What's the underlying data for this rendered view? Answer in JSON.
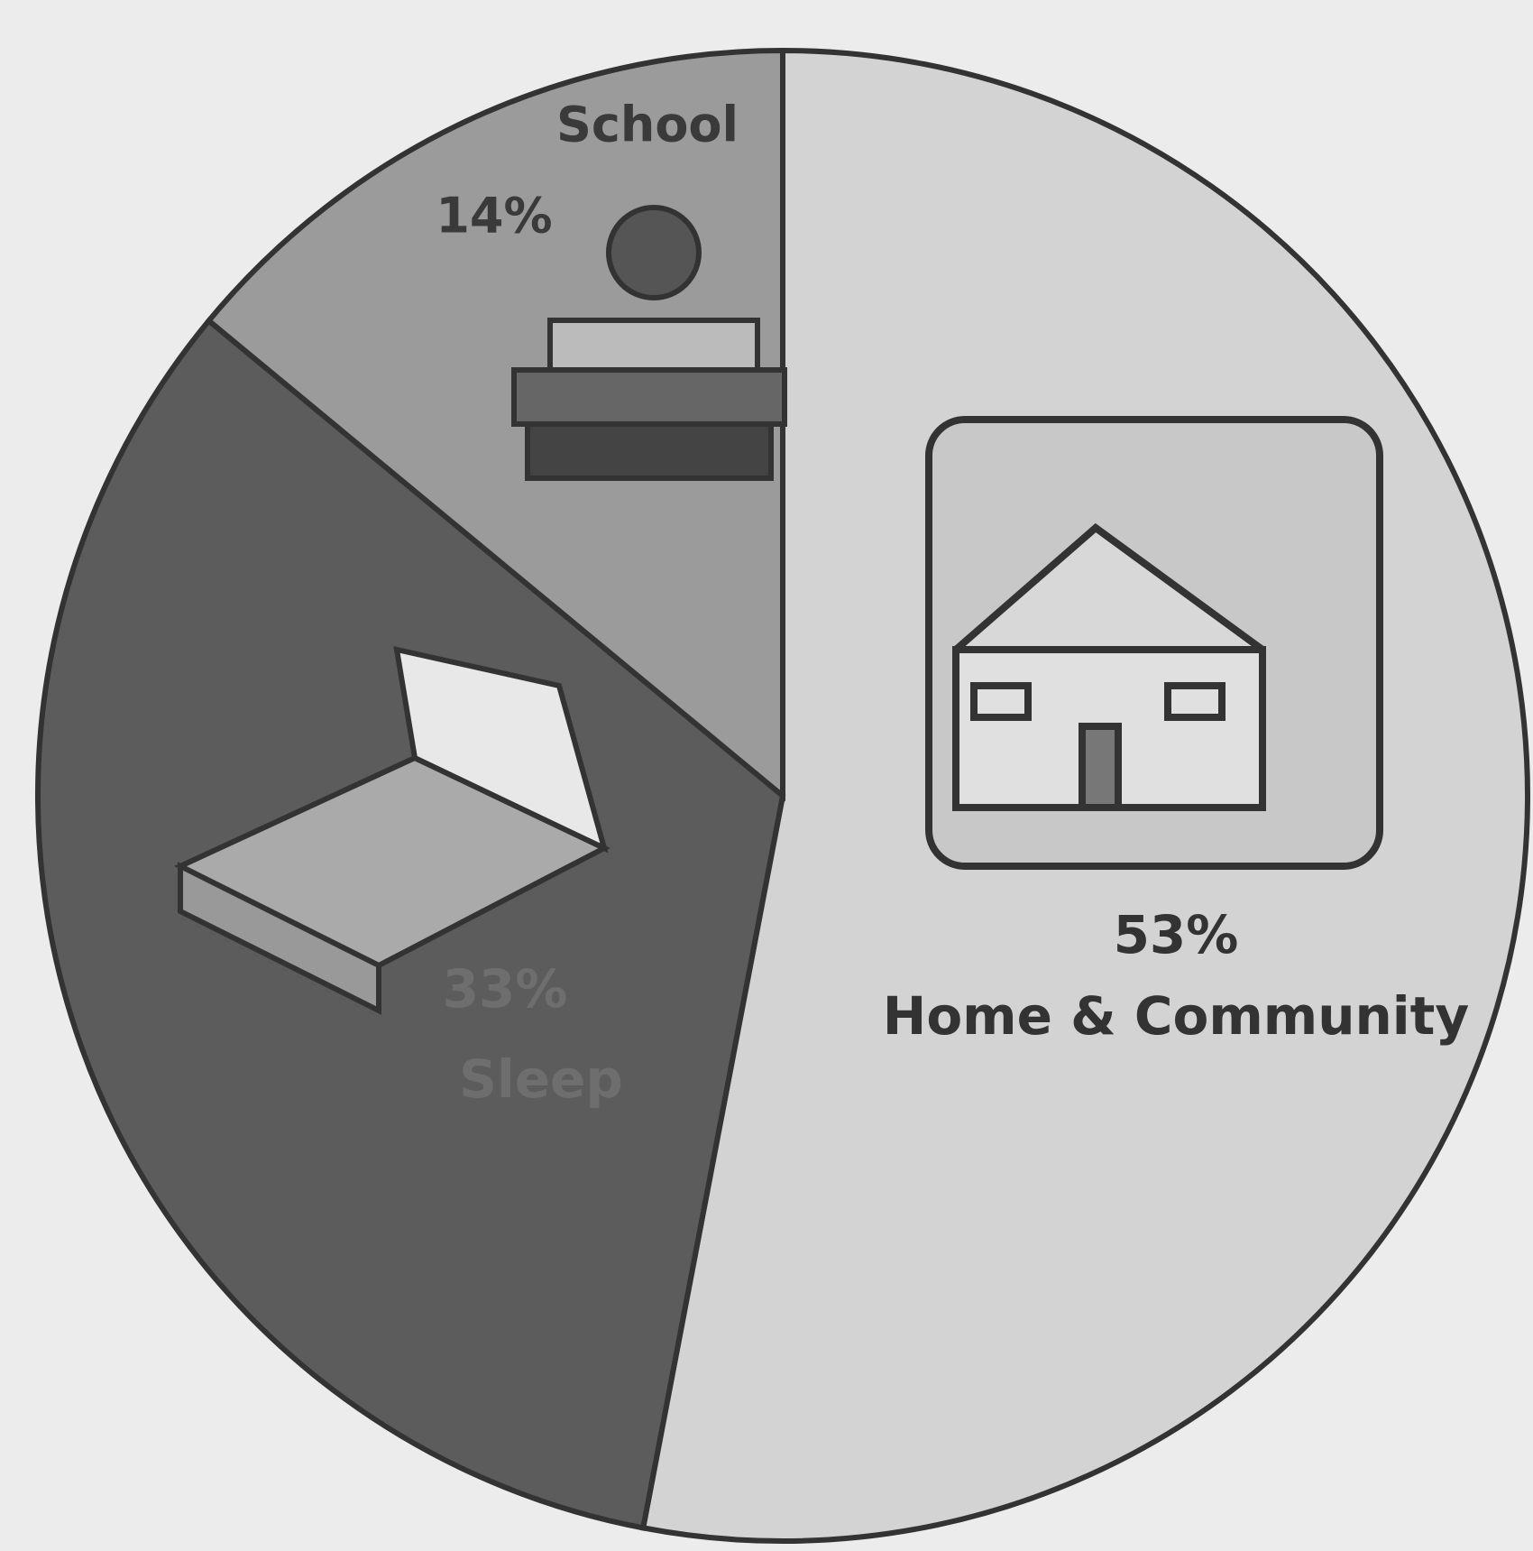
{
  "chart_data": {
    "type": "pie",
    "categories": [
      "Home & Community",
      "Sleep",
      "School"
    ],
    "values": [
      53,
      33,
      14
    ],
    "value_labels": [
      "53%",
      "33%",
      "14%"
    ],
    "colors": [
      "#d3d3d3",
      "#5c5c5c",
      "#9b9b9b"
    ]
  }
}
